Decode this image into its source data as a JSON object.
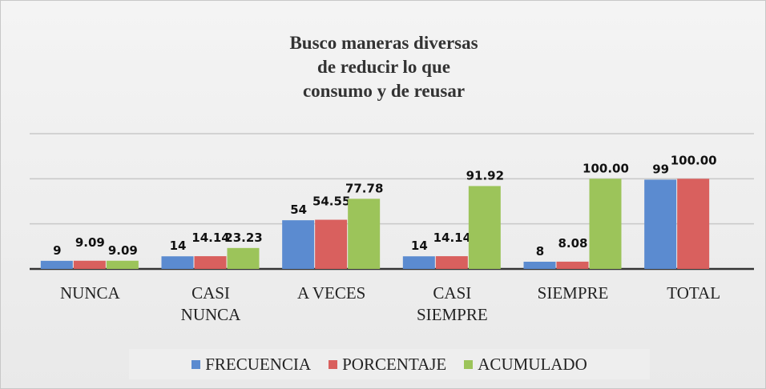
{
  "chart_data": {
    "type": "bar",
    "title": "Busco maneras diversas\nde reducir lo que\nconsumo y de reusar",
    "categories": [
      "NUNCA",
      "CASI NUNCA",
      "A VECES",
      "CASI SIEMPRE",
      "SIEMPRE",
      "TOTAL"
    ],
    "series": [
      {
        "name": "FRECUENCIA",
        "color": "#5b8bd0",
        "values": [
          9,
          14,
          54,
          14,
          8,
          99
        ]
      },
      {
        "name": "PORCENTAJE",
        "color": "#d9605e",
        "values": [
          9.09,
          14.14,
          54.55,
          14.14,
          8.08,
          100.0
        ],
        "value_labels": [
          "9.09",
          "14.14",
          "54.55",
          "14.14",
          "8.08",
          "100.00"
        ]
      },
      {
        "name": "ACUMULADO",
        "color": "#9cc45a",
        "values": [
          9.09,
          23.23,
          77.78,
          91.92,
          100.0,
          null
        ],
        "value_labels": [
          "9.09",
          "23.23",
          "77.78",
          "91.92",
          "100.00",
          null
        ]
      }
    ],
    "ylim": [
      0,
      150
    ],
    "yticks": [
      0,
      50,
      100,
      150
    ],
    "grid": true,
    "legend": "bottom"
  }
}
